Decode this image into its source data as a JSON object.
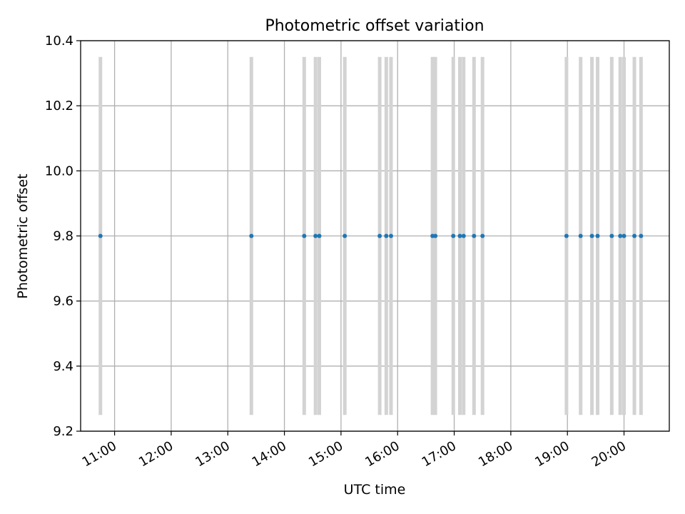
{
  "chart_data": {
    "type": "scatter",
    "title": "Photometric offset variation",
    "xlabel": "UTC time",
    "ylabel": "Photometric offset",
    "x_ticks": [
      "11:00",
      "12:00",
      "13:00",
      "14:00",
      "15:00",
      "16:00",
      "17:00",
      "18:00",
      "19:00",
      "20:00"
    ],
    "x_tick_hours": [
      11,
      12,
      13,
      14,
      15,
      16,
      17,
      18,
      19,
      20
    ],
    "y_ticks": [
      "9.2",
      "9.4",
      "9.6",
      "9.8",
      "10.0",
      "10.2",
      "10.4"
    ],
    "xlim": [
      10.4,
      20.8
    ],
    "ylim": [
      9.2,
      10.4
    ],
    "grid": true,
    "series": [
      {
        "color": "#1f77b4",
        "points": [
          {
            "time": "10:45",
            "value": 9.8
          },
          {
            "time": "13:25",
            "value": 9.8
          },
          {
            "time": "14:21",
            "value": 9.8
          },
          {
            "time": "14:33",
            "value": 9.8
          },
          {
            "time": "14:37",
            "value": 9.8
          },
          {
            "time": "15:04",
            "value": 9.8
          },
          {
            "time": "15:41",
            "value": 9.8
          },
          {
            "time": "15:48",
            "value": 9.8
          },
          {
            "time": "15:53",
            "value": 9.8
          },
          {
            "time": "16:37",
            "value": 9.8
          },
          {
            "time": "16:40",
            "value": 9.8
          },
          {
            "time": "16:59",
            "value": 9.8
          },
          {
            "time": "17:06",
            "value": 9.8
          },
          {
            "time": "17:10",
            "value": 9.8
          },
          {
            "time": "17:21",
            "value": 9.8
          },
          {
            "time": "17:30",
            "value": 9.8
          },
          {
            "time": "18:59",
            "value": 9.8
          },
          {
            "time": "19:14",
            "value": 9.8
          },
          {
            "time": "19:26",
            "value": 9.8
          },
          {
            "time": "19:32",
            "value": 9.8
          },
          {
            "time": "19:47",
            "value": 9.8
          },
          {
            "time": "19:56",
            "value": 9.8
          },
          {
            "time": "20:00",
            "value": 9.8
          },
          {
            "time": "20:11",
            "value": 9.8
          },
          {
            "time": "20:18",
            "value": 9.8
          }
        ]
      }
    ],
    "vertical_bands": {
      "color": "#d3d3d3",
      "y_range": [
        9.25,
        10.35
      ],
      "times": [
        "10:45",
        "13:25",
        "14:21",
        "14:33",
        "14:37",
        "15:04",
        "15:41",
        "15:48",
        "15:53",
        "16:37",
        "16:40",
        "16:59",
        "17:06",
        "17:10",
        "17:21",
        "17:30",
        "18:59",
        "19:14",
        "19:26",
        "19:32",
        "19:47",
        "19:56",
        "20:00",
        "20:11",
        "20:18"
      ]
    }
  }
}
